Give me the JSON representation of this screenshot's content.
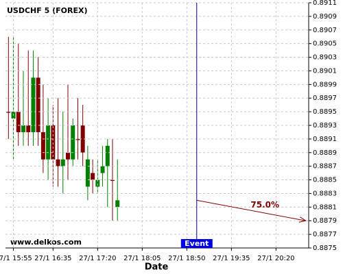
{
  "chart_data": {
    "type": "candlestick",
    "title": "USDCHF 5 (FOREX)",
    "watermark": "www.delkos.com",
    "x_label": "Date",
    "x": [
      "27/1 15:50",
      "27/1 15:55",
      "27/1 16:00",
      "27/1 16:05",
      "27/1 16:10",
      "27/1 16:15",
      "27/1 16:20",
      "27/1 16:25",
      "27/1 16:30",
      "27/1 16:35",
      "27/1 16:40",
      "27/1 16:45",
      "27/1 16:50",
      "27/1 16:55",
      "27/1 17:00",
      "27/1 17:05",
      "27/1 17:10",
      "27/1 17:15",
      "27/1 17:20",
      "27/1 17:25",
      "27/1 17:30",
      "27/1 17:35",
      "27/1 17:40"
    ],
    "open": [
      0.8895,
      0.8894,
      0.8895,
      0.8892,
      0.8893,
      0.8892,
      0.89,
      0.8892,
      0.8888,
      0.8893,
      0.8888,
      0.8887,
      0.8889,
      0.8888,
      0.8891,
      0.8893,
      0.8884,
      0.8886,
      0.8884,
      0.8886,
      0.8887,
      0.8885,
      0.8881
    ],
    "high": [
      0.8906,
      0.8906,
      0.8905,
      0.8901,
      0.8904,
      0.8904,
      0.8903,
      0.8899,
      0.8897,
      0.8896,
      0.8897,
      0.8895,
      0.8899,
      0.8894,
      0.8897,
      0.8896,
      0.889,
      0.8888,
      0.8888,
      0.889,
      0.8891,
      0.8891,
      0.8888
    ],
    "low": [
      0.8891,
      0.8888,
      0.889,
      0.889,
      0.889,
      0.889,
      0.889,
      0.8886,
      0.8885,
      0.8884,
      0.8884,
      0.8883,
      0.8885,
      0.8887,
      0.8888,
      0.8887,
      0.8882,
      0.8883,
      0.8883,
      0.8884,
      0.8881,
      0.8879,
      0.8879
    ],
    "close": [
      0.8895,
      0.8895,
      0.8892,
      0.8893,
      0.8892,
      0.89,
      0.8892,
      0.8888,
      0.8893,
      0.8888,
      0.8887,
      0.8888,
      0.8888,
      0.8893,
      0.8891,
      0.8889,
      0.8888,
      0.8885,
      0.8885,
      0.8887,
      0.889,
      0.8885,
      0.8882
    ],
    "up_color": "#008000",
    "down_color": "#800000",
    "xlim": [
      "27/1 15:47",
      "27/1 20:53"
    ],
    "xticks": [
      "27/1 15:55",
      "27/1 16:35",
      "27/1 17:20",
      "27/1 18:05",
      "27/1 18:50",
      "27/1 19:35",
      "27/1 20:20"
    ],
    "ylim": [
      0.8875,
      0.8911
    ],
    "yticks": [
      0.8875,
      0.8877,
      0.8879,
      0.8881,
      0.8883,
      0.8885,
      0.8887,
      0.8889,
      0.8891,
      0.8893,
      0.8895,
      0.8897,
      0.8899,
      0.8901,
      0.8903,
      0.8905,
      0.8907,
      0.8909,
      0.8911
    ],
    "grid": true,
    "event": {
      "x": "27/1 19:00",
      "label": "Event",
      "color": "#000080"
    },
    "forecast": {
      "x": [
        "27/1 19:00",
        "27/1 20:50"
      ],
      "y": [
        0.8882,
        0.8879
      ],
      "label": "75.0%",
      "color": "#800000"
    }
  }
}
